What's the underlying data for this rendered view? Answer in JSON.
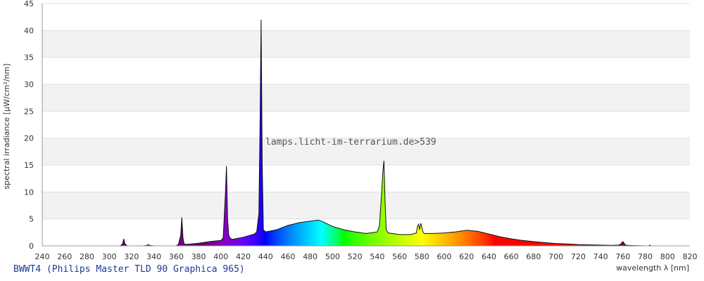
{
  "caption": "BWWT4 (Philips Master TLD 90 Graphica 965)",
  "chart_data": {
    "type": "area",
    "title": "",
    "xlabel": "wavelength λ [nm]",
    "ylabel": "spectral irradiance [µW/cm²/nm]",
    "watermark": "lamps.licht-im-terrarium.de>539",
    "xlim": [
      240,
      820
    ],
    "ylim": [
      0,
      45
    ],
    "xticks": [
      240,
      260,
      280,
      300,
      320,
      340,
      360,
      380,
      400,
      420,
      440,
      460,
      480,
      500,
      520,
      540,
      560,
      580,
      600,
      620,
      640,
      660,
      680,
      700,
      720,
      740,
      760,
      780,
      800,
      820
    ],
    "yticks": [
      0,
      5,
      10,
      15,
      20,
      25,
      30,
      35,
      40,
      45
    ],
    "grid": "horizontal bands",
    "fill": "wavelength color spectrum",
    "series": [
      {
        "x": [
          240,
          300,
          310,
          312,
          313,
          314,
          316,
          320,
          330,
          334,
          335,
          336,
          340,
          360,
          362,
          364,
          365,
          366,
          367,
          368,
          370,
          380,
          390,
          400,
          402,
          404,
          405,
          406,
          407,
          408,
          410,
          420,
          430,
          432,
          434,
          435,
          436,
          437,
          438,
          440,
          450,
          460,
          470,
          480,
          487,
          490,
          500,
          510,
          520,
          530,
          540,
          542,
          544,
          545,
          546,
          547,
          548,
          550,
          560,
          570,
          575,
          576,
          577,
          578,
          579,
          580,
          581,
          582,
          585,
          590,
          600,
          610,
          620,
          630,
          640,
          650,
          660,
          670,
          680,
          690,
          700,
          710,
          720,
          730,
          740,
          750,
          756,
          758,
          759,
          760,
          761,
          762,
          764,
          770,
          775,
          780,
          783,
          784,
          785,
          790,
          800,
          820
        ],
        "y": [
          0,
          0,
          0,
          0.4,
          1.3,
          0.4,
          0,
          0,
          0,
          0.1,
          0.25,
          0.1,
          0,
          0,
          0.3,
          2.0,
          5.3,
          1.5,
          0.4,
          0.3,
          0.3,
          0.5,
          0.8,
          1.0,
          1.5,
          9.5,
          14.8,
          5.0,
          2.0,
          1.5,
          1.2,
          1.6,
          2.2,
          2.6,
          6.0,
          21.8,
          42.0,
          15.0,
          3.0,
          2.6,
          3.0,
          3.8,
          4.3,
          4.6,
          4.8,
          4.6,
          3.6,
          3.0,
          2.6,
          2.3,
          2.6,
          3.8,
          10.0,
          13.8,
          15.8,
          8.0,
          3.0,
          2.4,
          2.1,
          2.1,
          2.4,
          3.6,
          4.0,
          3.0,
          4.2,
          3.4,
          2.6,
          2.3,
          2.3,
          2.3,
          2.4,
          2.6,
          2.9,
          2.7,
          2.2,
          1.7,
          1.3,
          1.0,
          0.8,
          0.6,
          0.45,
          0.35,
          0.25,
          0.2,
          0.15,
          0.1,
          0.15,
          0.3,
          0.6,
          0.8,
          0.5,
          0.2,
          0.1,
          0.05,
          0.02,
          0,
          0,
          0.15,
          0,
          0,
          0,
          0
        ]
      }
    ]
  }
}
